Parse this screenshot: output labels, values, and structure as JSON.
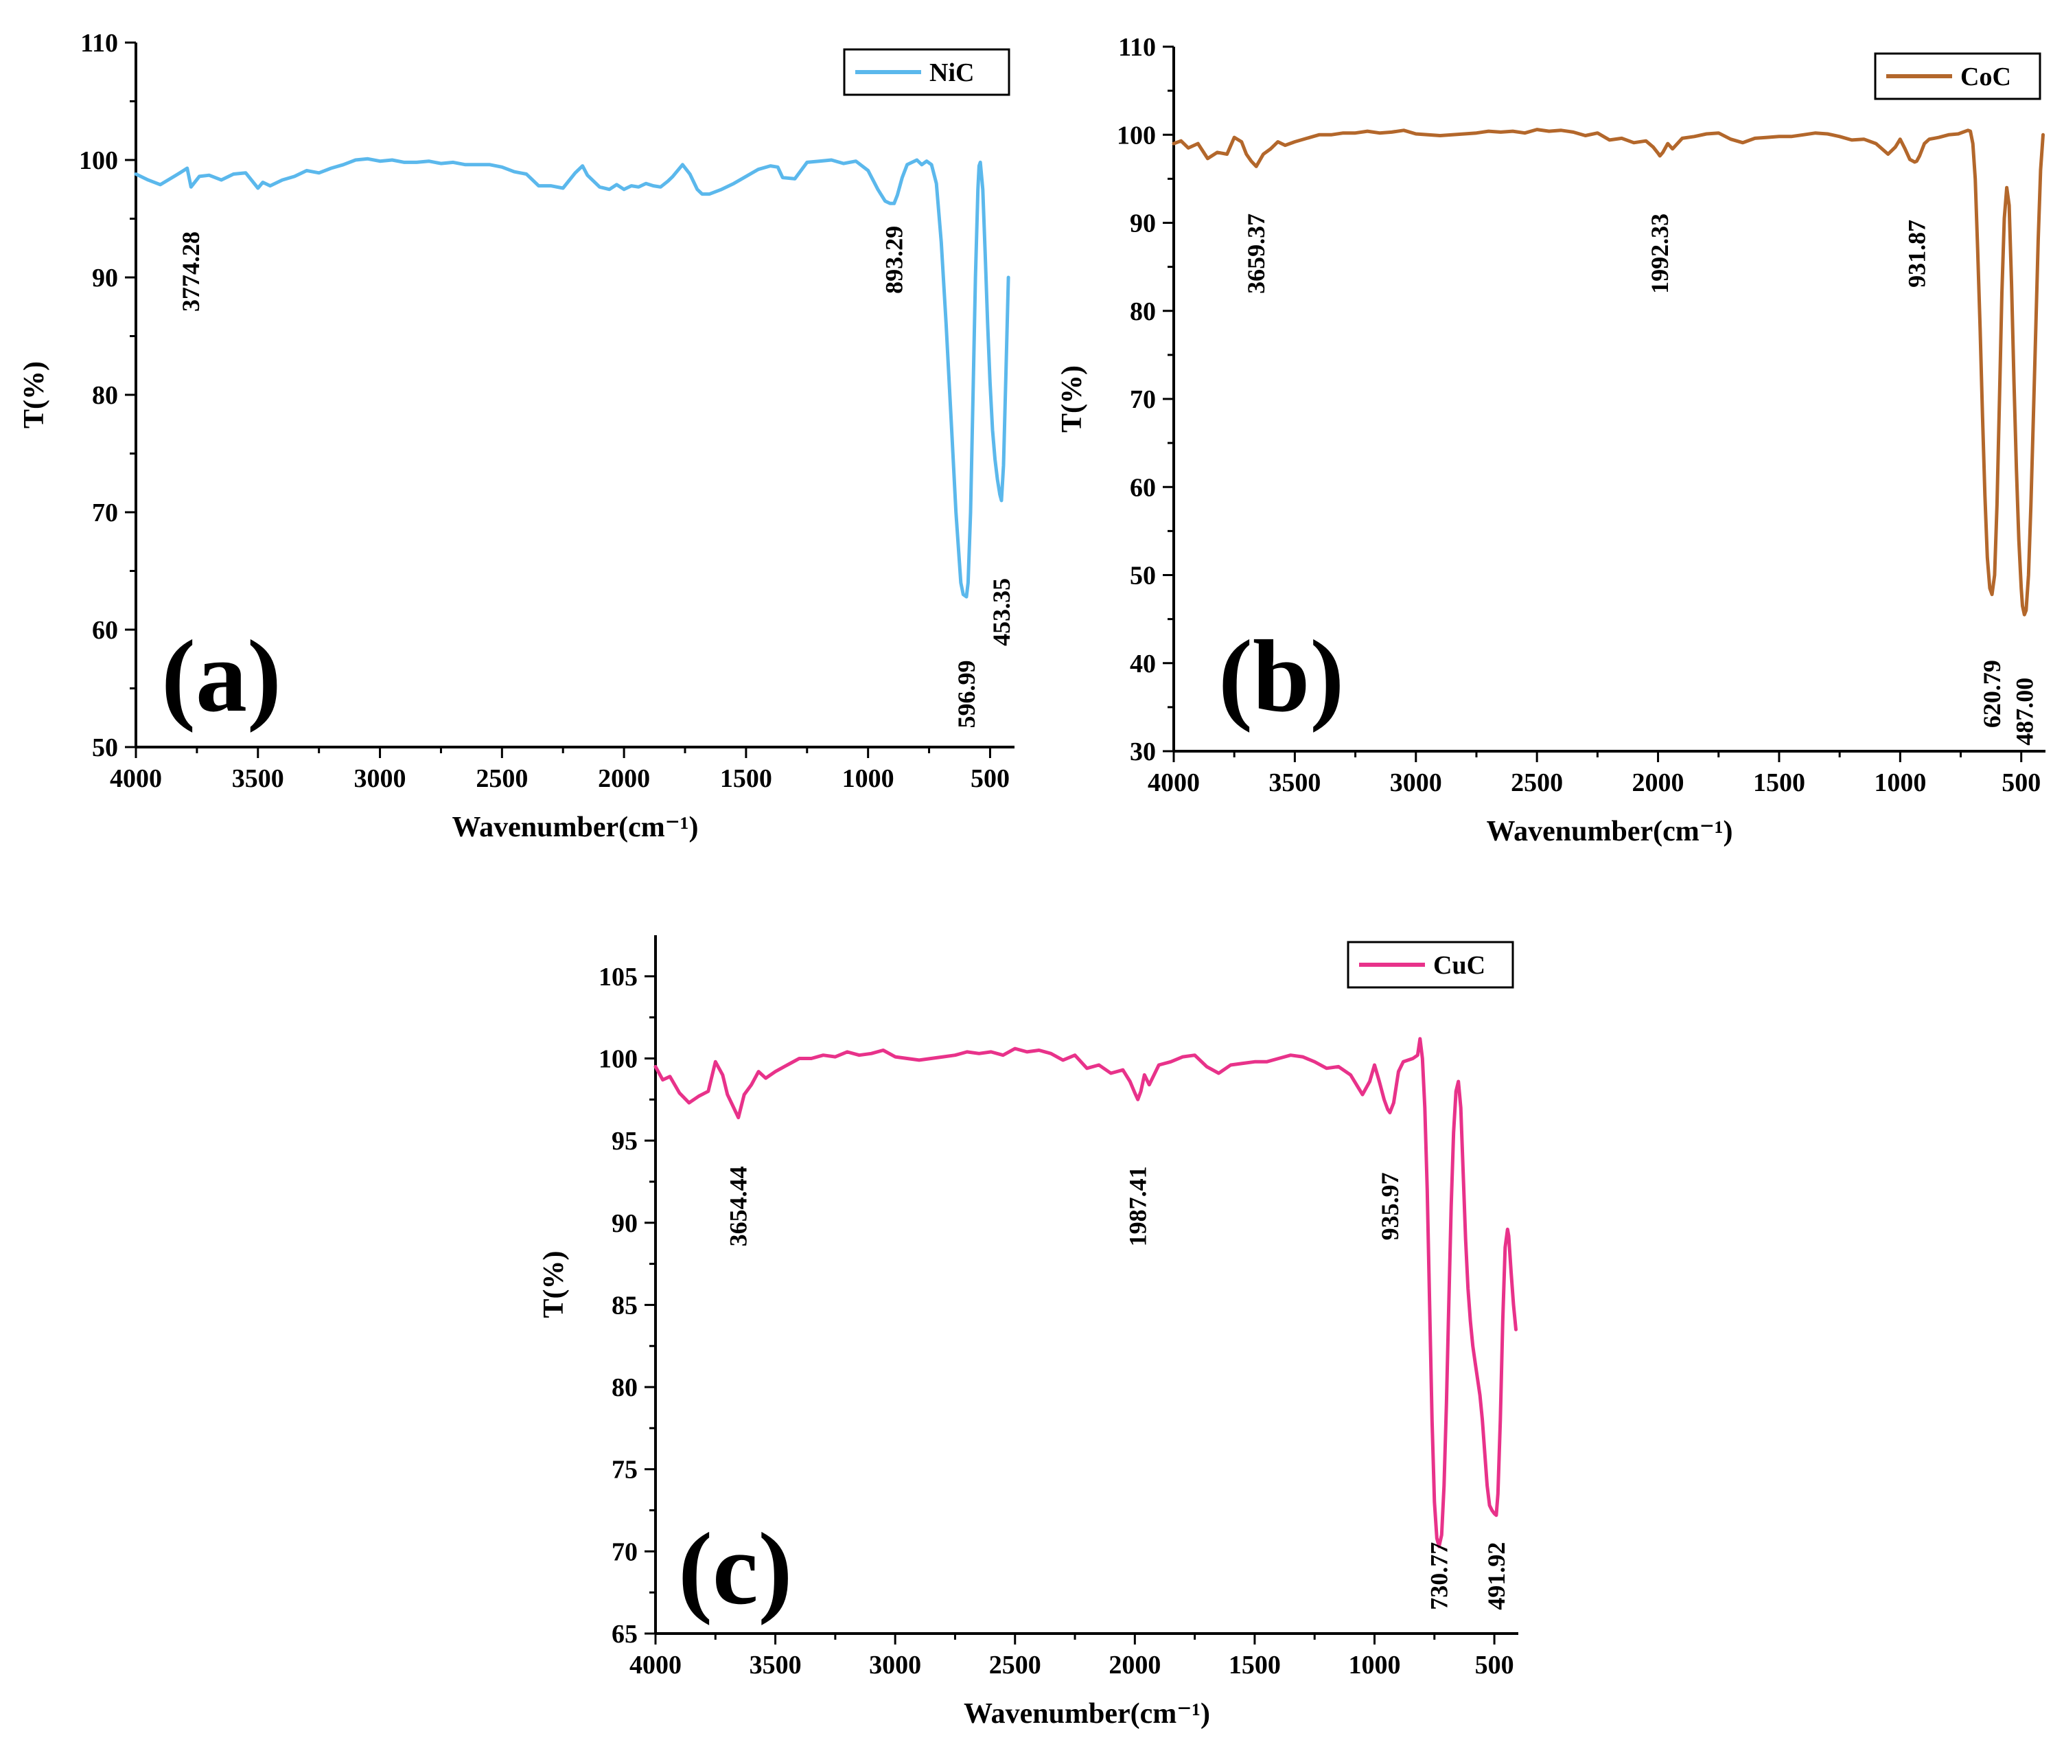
{
  "figure_colors": {
    "axis": "#000000",
    "background": "#ffffff"
  },
  "chart_data": [
    {
      "type": "line",
      "panel_label": "(a)",
      "xlabel": "Wavenumber(cm⁻¹)",
      "ylabel": "T(%)",
      "xlim": [
        4000,
        400
      ],
      "ylim": [
        50,
        110
      ],
      "xticks": [
        4000,
        3500,
        3000,
        2500,
        2000,
        1500,
        1000,
        500
      ],
      "yticks": [
        50,
        60,
        70,
        80,
        90,
        100,
        110
      ],
      "legend_position": "top-right",
      "series": [
        {
          "name": "NiC",
          "color": "#5bb8ec",
          "x": [
            4000,
            3950,
            3900,
            3860,
            3820,
            3790,
            3774.28,
            3740,
            3700,
            3650,
            3600,
            3550,
            3500,
            3480,
            3450,
            3400,
            3350,
            3300,
            3250,
            3200,
            3150,
            3100,
            3050,
            3000,
            2950,
            2900,
            2850,
            2800,
            2750,
            2700,
            2650,
            2600,
            2550,
            2500,
            2450,
            2400,
            2350,
            2300,
            2250,
            2200,
            2170,
            2150,
            2100,
            2060,
            2030,
            2000,
            1970,
            1940,
            1910,
            1880,
            1850,
            1820,
            1800,
            1760,
            1730,
            1700,
            1680,
            1650,
            1600,
            1550,
            1500,
            1450,
            1400,
            1370,
            1350,
            1300,
            1250,
            1200,
            1150,
            1100,
            1050,
            1000,
            960,
            930,
            910,
            893.29,
            880,
            860,
            840,
            800,
            780,
            760,
            740,
            720,
            700,
            680,
            660,
            640,
            620,
            610,
            596.99,
            590,
            580,
            570,
            560,
            550,
            545,
            540,
            530,
            520,
            510,
            500,
            490,
            480,
            470,
            460,
            453.35,
            445,
            435,
            425
          ],
          "y": [
            98.8,
            98.3,
            97.9,
            98.4,
            98.9,
            99.3,
            97.7,
            98.6,
            98.7,
            98.3,
            98.8,
            98.9,
            97.6,
            98.1,
            97.8,
            98.3,
            98.6,
            99.1,
            98.9,
            99.3,
            99.6,
            100.0,
            100.1,
            99.9,
            100.0,
            99.8,
            99.8,
            99.9,
            99.7,
            99.8,
            99.6,
            99.6,
            99.6,
            99.4,
            99.0,
            98.8,
            97.8,
            97.8,
            97.6,
            98.9,
            99.5,
            98.7,
            97.7,
            97.5,
            97.9,
            97.5,
            97.8,
            97.7,
            98.0,
            97.8,
            97.7,
            98.2,
            98.6,
            99.6,
            98.8,
            97.5,
            97.1,
            97.1,
            97.5,
            98.0,
            98.6,
            99.2,
            99.5,
            99.4,
            98.5,
            98.4,
            99.8,
            99.9,
            100.0,
            99.7,
            99.9,
            99.1,
            97.5,
            96.5,
            96.3,
            96.3,
            97.0,
            98.5,
            99.6,
            100.0,
            99.6,
            99.9,
            99.6,
            98.0,
            93.0,
            86.0,
            78.0,
            70.0,
            64.0,
            63.0,
            62.8,
            64.0,
            70.0,
            80.0,
            90.0,
            97.5,
            99.5,
            99.8,
            97.5,
            92.0,
            86.0,
            81.0,
            77.0,
            74.5,
            72.8,
            71.5,
            71.0,
            74.0,
            82.0,
            90.0
          ]
        }
      ],
      "peak_labels": [
        {
          "text": "3774.28",
          "x": 3774.28,
          "y": 97.7
        },
        {
          "text": "893.29",
          "x": 893.29,
          "y": 96.3
        },
        {
          "text": "596.99",
          "x": 596.99,
          "y": 62.8
        },
        {
          "text": "453.35",
          "x": 453.35,
          "y": 71.0
        }
      ]
    },
    {
      "type": "line",
      "panel_label": "(b)",
      "xlabel": "Wavenumber(cm⁻¹)",
      "ylabel": "T(%)",
      "xlim": [
        4000,
        400
      ],
      "ylim": [
        30,
        110
      ],
      "xticks": [
        4000,
        3500,
        3000,
        2500,
        2000,
        1500,
        1000,
        500
      ],
      "yticks": [
        30,
        40,
        50,
        60,
        70,
        80,
        90,
        100,
        110
      ],
      "legend_position": "top-right",
      "series": [
        {
          "name": "CoC",
          "color": "#b3672b",
          "x": [
            4000,
            3970,
            3940,
            3900,
            3860,
            3820,
            3780,
            3750,
            3720,
            3700,
            3680,
            3659.37,
            3630,
            3600,
            3570,
            3540,
            3500,
            3450,
            3400,
            3350,
            3300,
            3250,
            3200,
            3150,
            3100,
            3050,
            3000,
            2950,
            2900,
            2850,
            2800,
            2750,
            2700,
            2650,
            2600,
            2550,
            2500,
            2450,
            2400,
            2350,
            2300,
            2250,
            2200,
            2150,
            2100,
            2050,
            2020,
            2000,
            1992.33,
            1980,
            1960,
            1940,
            1900,
            1850,
            1800,
            1750,
            1700,
            1650,
            1600,
            1550,
            1500,
            1450,
            1400,
            1350,
            1300,
            1250,
            1200,
            1150,
            1100,
            1050,
            1020,
            1000,
            980,
            960,
            940,
            931.87,
            920,
            900,
            880,
            860,
            840,
            800,
            760,
            740,
            720,
            710,
            700,
            690,
            680,
            670,
            660,
            650,
            640,
            630,
            620.79,
            610,
            600,
            590,
            580,
            570,
            560,
            550,
            540,
            530,
            520,
            510,
            500,
            495,
            487.0,
            480,
            470,
            460,
            450,
            440,
            430,
            420,
            410
          ],
          "y": [
            99.0,
            99.3,
            98.5,
            99.0,
            97.3,
            98.0,
            97.8,
            99.7,
            99.2,
            97.8,
            97.0,
            96.4,
            97.8,
            98.4,
            99.2,
            98.8,
            99.2,
            99.6,
            100.0,
            100.0,
            100.2,
            100.2,
            100.4,
            100.2,
            100.3,
            100.5,
            100.1,
            100.0,
            99.9,
            100.0,
            100.1,
            100.2,
            100.4,
            100.3,
            100.4,
            100.2,
            100.6,
            100.4,
            100.5,
            100.3,
            99.9,
            100.2,
            99.4,
            99.6,
            99.1,
            99.3,
            98.6,
            97.9,
            97.6,
            98.0,
            99.0,
            98.4,
            99.6,
            99.8,
            100.1,
            100.2,
            99.5,
            99.1,
            99.6,
            99.7,
            99.8,
            99.8,
            100.0,
            100.2,
            100.1,
            99.8,
            99.4,
            99.5,
            99.0,
            97.8,
            98.6,
            99.5,
            98.4,
            97.2,
            96.9,
            97.0,
            97.6,
            99.0,
            99.5,
            99.6,
            99.7,
            100.0,
            100.1,
            100.3,
            100.5,
            100.4,
            99.0,
            95.0,
            87.0,
            78.0,
            68.0,
            59.0,
            52.0,
            48.5,
            47.8,
            50.0,
            58.0,
            70.0,
            82.0,
            90.5,
            94.0,
            92.0,
            83.0,
            72.0,
            62.0,
            54.0,
            48.5,
            46.5,
            45.5,
            46.0,
            50.0,
            58.0,
            68.0,
            78.0,
            88.0,
            96.0,
            100.0
          ]
        }
      ],
      "peak_labels": [
        {
          "text": "3659.37",
          "x": 3659.37,
          "y": 96.4
        },
        {
          "text": "1992.33",
          "x": 1992.33,
          "y": 97.6
        },
        {
          "text": "931.87",
          "x": 931.87,
          "y": 97.0
        },
        {
          "text": "620.79",
          "x": 620.79,
          "y": 47.8
        },
        {
          "text": "487.00",
          "x": 487.0,
          "y": 45.5
        }
      ]
    },
    {
      "type": "line",
      "panel_label": "(c)",
      "xlabel": "Wavenumber(cm⁻¹)",
      "ylabel": "T(%)",
      "xlim": [
        4000,
        400
      ],
      "ylim": [
        65,
        107.5
      ],
      "xticks": [
        4000,
        3500,
        3000,
        2500,
        2000,
        1500,
        1000,
        500
      ],
      "yticks": [
        65,
        70,
        75,
        80,
        85,
        90,
        95,
        100,
        105
      ],
      "legend_position": "top-right",
      "series": [
        {
          "name": "CuC",
          "color": "#e8328a",
          "x": [
            4000,
            3970,
            3940,
            3900,
            3860,
            3820,
            3780,
            3750,
            3720,
            3700,
            3680,
            3654.44,
            3630,
            3600,
            3570,
            3540,
            3500,
            3450,
            3400,
            3350,
            3300,
            3250,
            3200,
            3150,
            3100,
            3050,
            3000,
            2950,
            2900,
            2850,
            2800,
            2750,
            2700,
            2650,
            2600,
            2550,
            2500,
            2450,
            2400,
            2350,
            2300,
            2250,
            2200,
            2150,
            2100,
            2050,
            2020,
            2000,
            1987.41,
            1975,
            1960,
            1940,
            1900,
            1850,
            1800,
            1750,
            1700,
            1650,
            1600,
            1550,
            1500,
            1450,
            1400,
            1350,
            1300,
            1250,
            1200,
            1150,
            1100,
            1050,
            1020,
            1000,
            980,
            960,
            945,
            935.97,
            920,
            900,
            880,
            860,
            840,
            820,
            810,
            800,
            790,
            780,
            770,
            760,
            750,
            740,
            730.77,
            720,
            710,
            700,
            690,
            680,
            670,
            660,
            650,
            640,
            630,
            620,
            610,
            600,
            590,
            580,
            570,
            560,
            550,
            540,
            530,
            520,
            510,
            500,
            491.92,
            485,
            475,
            465,
            455,
            445,
            440,
            430,
            420,
            410
          ],
          "y": [
            99.5,
            98.7,
            98.9,
            97.9,
            97.3,
            97.7,
            98.0,
            99.8,
            99.0,
            97.8,
            97.2,
            96.4,
            97.8,
            98.4,
            99.2,
            98.8,
            99.2,
            99.6,
            100.0,
            100.0,
            100.2,
            100.1,
            100.4,
            100.2,
            100.3,
            100.5,
            100.1,
            100.0,
            99.9,
            100.0,
            100.1,
            100.2,
            100.4,
            100.3,
            100.4,
            100.2,
            100.6,
            100.4,
            100.5,
            100.3,
            99.9,
            100.2,
            99.4,
            99.6,
            99.1,
            99.3,
            98.6,
            97.9,
            97.5,
            98.0,
            99.0,
            98.4,
            99.6,
            99.8,
            100.1,
            100.2,
            99.5,
            99.1,
            99.6,
            99.7,
            99.8,
            99.8,
            100.0,
            100.2,
            100.1,
            99.8,
            99.4,
            99.5,
            99.0,
            97.8,
            98.6,
            99.6,
            98.6,
            97.5,
            96.9,
            96.7,
            97.3,
            99.2,
            99.8,
            99.9,
            100.0,
            100.2,
            101.2,
            100.0,
            97.0,
            92.0,
            85.0,
            78.0,
            73.0,
            70.8,
            70.3,
            71.0,
            74.0,
            79.0,
            85.0,
            91.0,
            95.5,
            98.0,
            98.6,
            97.0,
            93.0,
            89.0,
            86.0,
            84.0,
            82.5,
            81.5,
            80.5,
            79.5,
            78.0,
            76.0,
            74.0,
            72.8,
            72.5,
            72.3,
            72.2,
            73.5,
            78.0,
            84.0,
            88.5,
            89.6,
            89.2,
            87.0,
            85.0,
            83.5
          ]
        }
      ],
      "peak_labels": [
        {
          "text": "3654.44",
          "x": 3654.44,
          "y": 96.4
        },
        {
          "text": "1987.41",
          "x": 1987.41,
          "y": 97.5
        },
        {
          "text": "935.97",
          "x": 935.97,
          "y": 96.7
        },
        {
          "text": "730.77",
          "x": 730.77,
          "y": 70.3
        },
        {
          "text": "491.92",
          "x": 491.92,
          "y": 72.2
        }
      ]
    }
  ]
}
